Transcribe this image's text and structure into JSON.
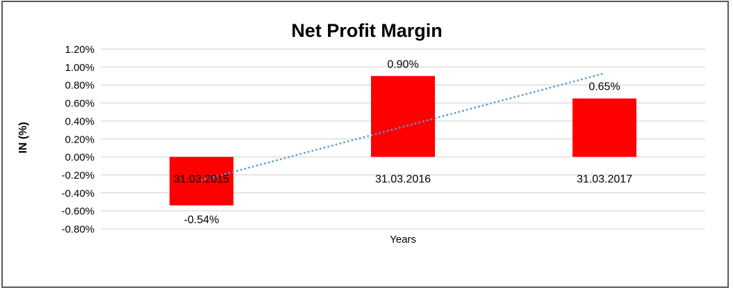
{
  "chart_data": {
    "type": "bar",
    "title": "Net Profit Margin",
    "xlabel": "Years",
    "ylabel": "IN (%)",
    "categories": [
      "31.03.2015",
      "31.03.2016",
      "31.03.2017"
    ],
    "values": [
      -0.54,
      0.9,
      0.65
    ],
    "data_labels": [
      "-0.54%",
      "0.90%",
      "0.65%"
    ],
    "y_ticks": [
      "1.20%",
      "1.00%",
      "0.80%",
      "0.60%",
      "0.40%",
      "0.20%",
      "0.00%",
      "-0.20%",
      "-0.40%",
      "-0.60%",
      "-0.80%"
    ],
    "ylim": [
      -0.8,
      1.2
    ],
    "y_step": 0.2,
    "grid": true,
    "legend": false,
    "bar_color": "#FF0000",
    "gridline_color": "#D9D9D9",
    "frame_color": "#595959",
    "text_color": "#000000",
    "trendline": {
      "style": "dotted",
      "color": "#5B9BD5",
      "start_value": -0.26,
      "end_value": 0.93
    }
  }
}
